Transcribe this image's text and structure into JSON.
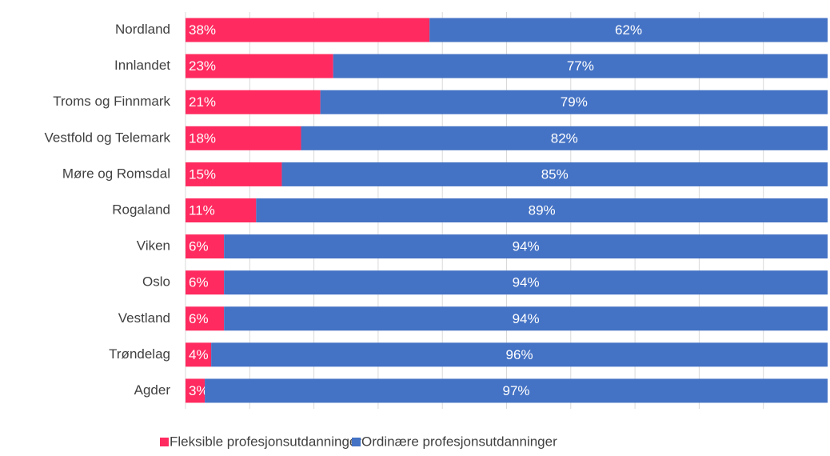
{
  "chart_data": {
    "type": "stacked_barh",
    "categories": [
      "Nordland",
      "Innlandet",
      "Troms og Finnmark",
      "Vestfold og Telemark",
      "Møre og Romsdal",
      "Rogaland",
      "Viken",
      "Oslo",
      "Vestland",
      "Trøndelag",
      "Agder"
    ],
    "series": [
      {
        "name": "Fleksible profesjonsutdanninger",
        "color": "#ff2a5f",
        "values": [
          38,
          23,
          21,
          18,
          15,
          11,
          6,
          6,
          6,
          4,
          3
        ],
        "value_labels": [
          "38%",
          "23%",
          "21%",
          "18%",
          "15%",
          "11%",
          "6%",
          "6%",
          "6%",
          "4%",
          "3%"
        ]
      },
      {
        "name": "Ordinære profesjonsutdanninger",
        "color": "#4472c4",
        "values": [
          62,
          77,
          79,
          82,
          85,
          89,
          94,
          94,
          94,
          96,
          97
        ],
        "value_labels": [
          "62%",
          "77%",
          "79%",
          "82%",
          "85%",
          "89%",
          "94%",
          "94%",
          "94%",
          "96%",
          "97%"
        ]
      }
    ],
    "xlim": [
      0,
      100
    ],
    "xticks": [
      0,
      10,
      20,
      30,
      40,
      50,
      60,
      70,
      80,
      90
    ],
    "grid": true,
    "legend": "bottom"
  }
}
